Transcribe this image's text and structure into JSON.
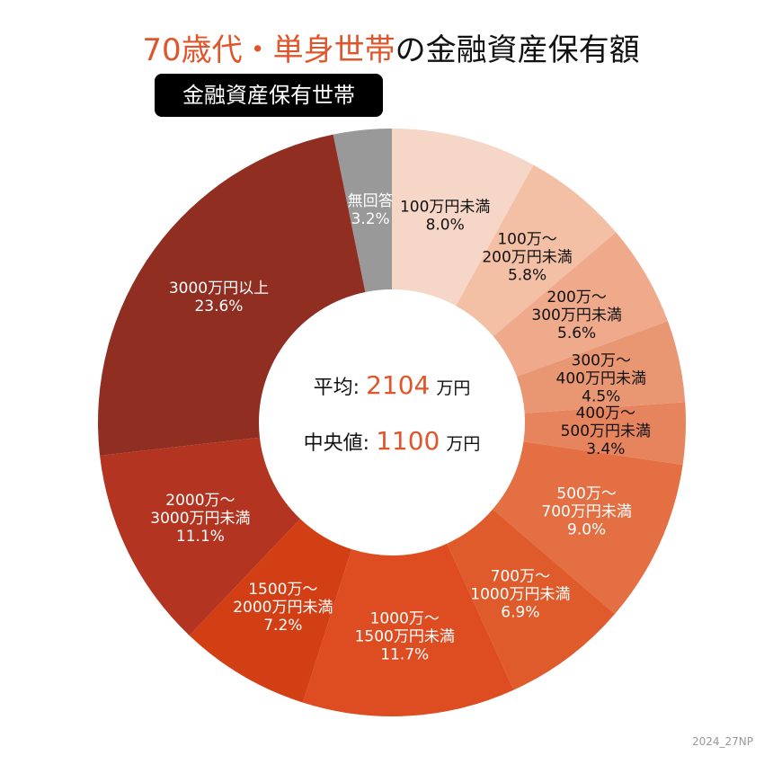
{
  "title": {
    "highlight": "70歳代・単身世帯",
    "rest": "の金融資産保有額"
  },
  "badge": "金融資産保有世帯",
  "center": {
    "mean_label": "平均:",
    "mean_value": "2104",
    "mean_unit": "万円",
    "median_label": "中央値:",
    "median_value": "1100",
    "median_unit": "万円"
  },
  "footer": "2024_27NP",
  "chart_data": {
    "type": "pie",
    "donut": true,
    "start": "top, clockwise",
    "slices": [
      {
        "label": [
          "100万円未満"
        ],
        "value": 8.0,
        "pct": "8.0%",
        "color": "#f5d6c7",
        "text_color": "#111111"
      },
      {
        "label": [
          "100万〜",
          "200万円未満"
        ],
        "value": 5.8,
        "pct": "5.8%",
        "color": "#f3bfa5",
        "text_color": "#111111"
      },
      {
        "label": [
          "200万〜",
          "300万円未満"
        ],
        "value": 5.6,
        "pct": "5.6%",
        "color": "#eeaa8a",
        "text_color": "#111111"
      },
      {
        "label": [
          "300万〜",
          "400万円未満"
        ],
        "value": 4.5,
        "pct": "4.5%",
        "color": "#e99673",
        "text_color": "#111111"
      },
      {
        "label": [
          "400万〜",
          "500万円未満"
        ],
        "value": 3.4,
        "pct": "3.4%",
        "color": "#e6845e",
        "text_color": "#111111"
      },
      {
        "label": [
          "500万〜",
          "700万円未満"
        ],
        "value": 9.0,
        "pct": "9.0%",
        "color": "#e36f43",
        "text_color": "#ffffff"
      },
      {
        "label": [
          "700万〜",
          "1000万円未満"
        ],
        "value": 6.9,
        "pct": "6.9%",
        "color": "#df5b2b",
        "text_color": "#ffffff"
      },
      {
        "label": [
          "1000万〜",
          "1500万円未満"
        ],
        "value": 11.7,
        "pct": "11.7%",
        "color": "#de4c22",
        "text_color": "#ffffff"
      },
      {
        "label": [
          "1500万〜",
          "2000万円未満"
        ],
        "value": 7.2,
        "pct": "7.2%",
        "color": "#d33f15",
        "text_color": "#ffffff"
      },
      {
        "label": [
          "2000万〜",
          "3000万円未満"
        ],
        "value": 11.1,
        "pct": "11.1%",
        "color": "#b33521",
        "text_color": "#ffffff"
      },
      {
        "label": [
          "3000万円以上"
        ],
        "value": 23.6,
        "pct": "23.6%",
        "color": "#912e22",
        "text_color": "#ffffff"
      },
      {
        "label": [
          "無回答"
        ],
        "value": 3.2,
        "pct": "3.2%",
        "color": "#999999",
        "text_color": "#ffffff"
      }
    ]
  }
}
